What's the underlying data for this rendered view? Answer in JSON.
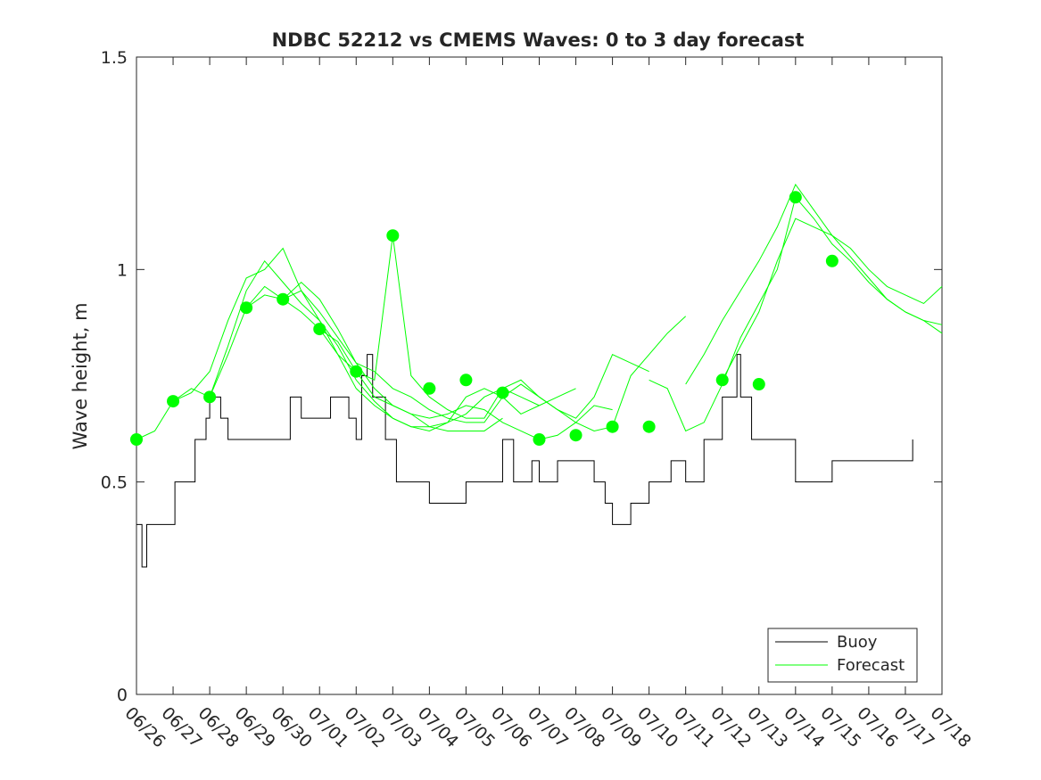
{
  "chart_data": {
    "type": "line",
    "title": "NDBC 52212 vs CMEMS Waves: 0 to 3 day forecast",
    "xlabel": "",
    "ylabel": "Wave height, m",
    "xlim": [
      "06/26",
      "07/18"
    ],
    "ylim": [
      0,
      1.5
    ],
    "yticks": [
      "0",
      "0.5",
      "1",
      "1.5"
    ],
    "xticks": [
      "06/26",
      "06/27",
      "06/28",
      "06/29",
      "06/30",
      "07/01",
      "07/02",
      "07/03",
      "07/04",
      "07/05",
      "07/06",
      "07/07",
      "07/08",
      "07/09",
      "07/10",
      "07/11",
      "07/12",
      "07/13",
      "07/14",
      "07/15",
      "07/16",
      "07/17",
      "07/18"
    ],
    "legend": {
      "location": "bottom-right",
      "entries": [
        "Buoy",
        "Forecast"
      ]
    },
    "colors": {
      "buoy": "#000000",
      "forecast": "#00ff00",
      "axes": "#262626"
    },
    "series": [
      {
        "name": "Buoy",
        "color": "#000000",
        "x": [
          0,
          0.12,
          0.15,
          0.25,
          0.28,
          0.35,
          0.4,
          0.9,
          1.0,
          1.05,
          1.2,
          1.3,
          1.6,
          1.9,
          2.0,
          2.3,
          2.5,
          2.8,
          3.0,
          3.5,
          4.0,
          4.2,
          4.5,
          5.0,
          5.3,
          5.8,
          6.0,
          6.15,
          6.3,
          6.45,
          6.6,
          6.8,
          7.0,
          7.1,
          7.3,
          7.8,
          8.0,
          8.5,
          9.0,
          9.3,
          9.6,
          10.0,
          10.3,
          10.8,
          11.0,
          11.5,
          12.0,
          12.5,
          12.8,
          13.0,
          13.5,
          14.0,
          14.3,
          14.6,
          15.0,
          15.5,
          16.0,
          16.4,
          16.5,
          16.8,
          17.0,
          17.5,
          17.9,
          18.0,
          18.5,
          18.8,
          19.0,
          19.5,
          20.0,
          20.5,
          21.0,
          21.2
        ],
        "values": [
          0.4,
          0.4,
          0.3,
          0.3,
          0.4,
          0.4,
          0.4,
          0.4,
          0.4,
          0.5,
          0.5,
          0.5,
          0.6,
          0.65,
          0.7,
          0.65,
          0.6,
          0.6,
          0.6,
          0.6,
          0.6,
          0.7,
          0.65,
          0.65,
          0.7,
          0.65,
          0.6,
          0.75,
          0.8,
          0.7,
          0.7,
          0.6,
          0.6,
          0.5,
          0.5,
          0.5,
          0.45,
          0.45,
          0.5,
          0.5,
          0.5,
          0.6,
          0.5,
          0.55,
          0.5,
          0.55,
          0.55,
          0.5,
          0.45,
          0.4,
          0.45,
          0.5,
          0.5,
          0.55,
          0.5,
          0.6,
          0.7,
          0.8,
          0.7,
          0.6,
          0.6,
          0.6,
          0.6,
          0.5,
          0.5,
          0.5,
          0.55,
          0.55,
          0.55,
          0.55,
          0.55,
          0.6
        ]
      },
      {
        "name": "Forecast",
        "color": "#00ff00",
        "runs": [
          {
            "x": [
              0,
              0.5,
              1.0,
              1.5,
              2.0,
              2.5,
              3.0,
              3.5,
              4.0,
              4.5,
              5.0,
              5.5,
              6.0,
              6.5,
              7.0,
              7.5,
              8.0,
              8.5,
              9.0,
              9.5,
              10.0
            ],
            "values": [
              0.6,
              0.62,
              0.69,
              0.72,
              0.7,
              0.8,
              0.91,
              0.96,
              0.93,
              0.9,
              0.86,
              0.8,
              0.76,
              0.7,
              0.68,
              0.66,
              0.63,
              0.62,
              0.62,
              0.62,
              0.65
            ]
          },
          {
            "x": [
              1.0,
              1.5,
              2.0,
              2.5,
              3.0,
              3.5,
              4.0,
              4.5,
              5.0,
              5.5,
              6.0,
              6.5,
              7.0,
              7.5,
              8.0,
              8.5,
              9.0,
              9.5,
              10.0,
              10.5,
              11.0
            ],
            "values": [
              0.69,
              0.71,
              0.76,
              0.88,
              0.98,
              1.0,
              1.05,
              0.95,
              0.88,
              0.8,
              0.72,
              0.68,
              0.65,
              0.63,
              0.63,
              0.64,
              0.66,
              0.7,
              0.72,
              0.7,
              0.68
            ]
          },
          {
            "x": [
              2.0,
              2.5,
              3.0,
              3.5,
              4.0,
              4.5,
              5.0,
              5.5,
              6.0,
              6.5,
              7.0,
              7.5,
              8.0,
              8.5,
              9.0,
              9.5,
              10.0,
              10.5,
              11.0,
              11.5,
              12.0
            ],
            "values": [
              0.7,
              0.82,
              0.95,
              1.02,
              0.97,
              0.92,
              0.88,
              0.82,
              0.74,
              0.69,
              0.65,
              0.63,
              0.62,
              0.64,
              0.7,
              0.72,
              0.7,
              0.66,
              0.68,
              0.7,
              0.72
            ]
          },
          {
            "x": [
              3.0,
              3.5,
              4.0,
              4.5,
              5.0,
              5.5,
              6.0,
              6.5,
              7.0,
              7.5,
              8.0,
              8.5,
              9.0,
              9.5,
              10.0,
              10.5,
              11.0,
              11.5,
              12.0,
              12.5,
              13.0
            ],
            "values": [
              0.91,
              0.94,
              0.93,
              0.95,
              0.9,
              0.84,
              0.78,
              0.72,
              0.68,
              0.66,
              0.65,
              0.66,
              0.68,
              0.67,
              0.64,
              0.62,
              0.6,
              0.61,
              0.64,
              0.68,
              0.67
            ]
          },
          {
            "x": [
              4.0,
              4.5,
              5.0,
              5.5,
              6.0,
              6.5,
              7.0,
              7.5,
              8.0,
              8.5,
              9.0,
              9.5,
              10.0,
              10.5,
              11.0,
              11.5,
              12.0,
              12.5,
              13.0,
              13.5,
              14.0
            ],
            "values": [
              0.93,
              0.97,
              0.93,
              0.86,
              0.78,
              0.76,
              0.72,
              0.7,
              0.67,
              0.65,
              0.64,
              0.64,
              0.7,
              0.73,
              0.7,
              0.67,
              0.65,
              0.7,
              0.8,
              0.78,
              0.76
            ]
          },
          {
            "x": [
              5.0,
              5.5,
              6.0,
              6.5,
              7.0,
              7.5,
              8.0,
              8.5,
              9.0,
              9.5,
              10.0,
              10.5,
              11.0,
              11.5,
              12.0,
              12.5,
              13.0,
              13.5,
              14.0,
              14.5,
              15.0
            ],
            "values": [
              0.86,
              0.83,
              0.76,
              0.74,
              1.08,
              0.75,
              0.7,
              0.67,
              0.65,
              0.65,
              0.72,
              0.74,
              0.7,
              0.67,
              0.64,
              0.62,
              0.63,
              0.75,
              0.8,
              0.85,
              0.89
            ]
          },
          {
            "x": [
              14.0,
              14.5,
              15.0,
              15.5,
              16.0,
              16.5,
              17.0,
              17.5,
              18.0,
              18.5,
              19.0,
              19.5,
              20.0,
              20.5,
              21.0,
              21.5,
              22.0
            ],
            "values": [
              0.74,
              0.72,
              0.62,
              0.64,
              0.73,
              0.84,
              0.92,
              1.0,
              1.17,
              1.12,
              1.06,
              1.02,
              0.97,
              0.93,
              0.9,
              0.88,
              0.87
            ]
          },
          {
            "x": [
              15.0,
              15.5,
              16.0,
              16.5,
              17.0,
              17.5,
              18.0,
              18.5,
              19.0,
              19.5,
              20.0,
              20.5,
              21.0,
              21.5,
              22.0
            ],
            "values": [
              0.73,
              0.8,
              0.88,
              0.95,
              1.02,
              1.1,
              1.2,
              1.14,
              1.08,
              1.03,
              0.98,
              0.93,
              0.9,
              0.88,
              0.85
            ]
          },
          {
            "x": [
              16.0,
              16.5,
              17.0,
              17.5,
              18.0,
              18.5,
              19.0,
              19.5,
              20.0,
              20.5,
              21.0,
              21.5,
              22.0
            ],
            "values": [
              0.74,
              0.82,
              0.9,
              1.02,
              1.12,
              1.1,
              1.08,
              1.05,
              1.0,
              0.96,
              0.94,
              0.92,
              0.96
            ]
          }
        ],
        "markers": {
          "x": [
            0,
            1,
            2,
            3,
            4,
            5,
            6,
            7,
            8,
            9,
            10,
            11,
            12,
            13,
            14,
            16,
            17,
            18,
            19
          ],
          "values": [
            0.6,
            0.69,
            0.7,
            0.91,
            0.93,
            0.86,
            0.76,
            1.08,
            0.72,
            0.74,
            0.71,
            0.6,
            0.61,
            0.63,
            0.63,
            0.74,
            0.73,
            1.17,
            1.02
          ]
        }
      }
    ]
  }
}
